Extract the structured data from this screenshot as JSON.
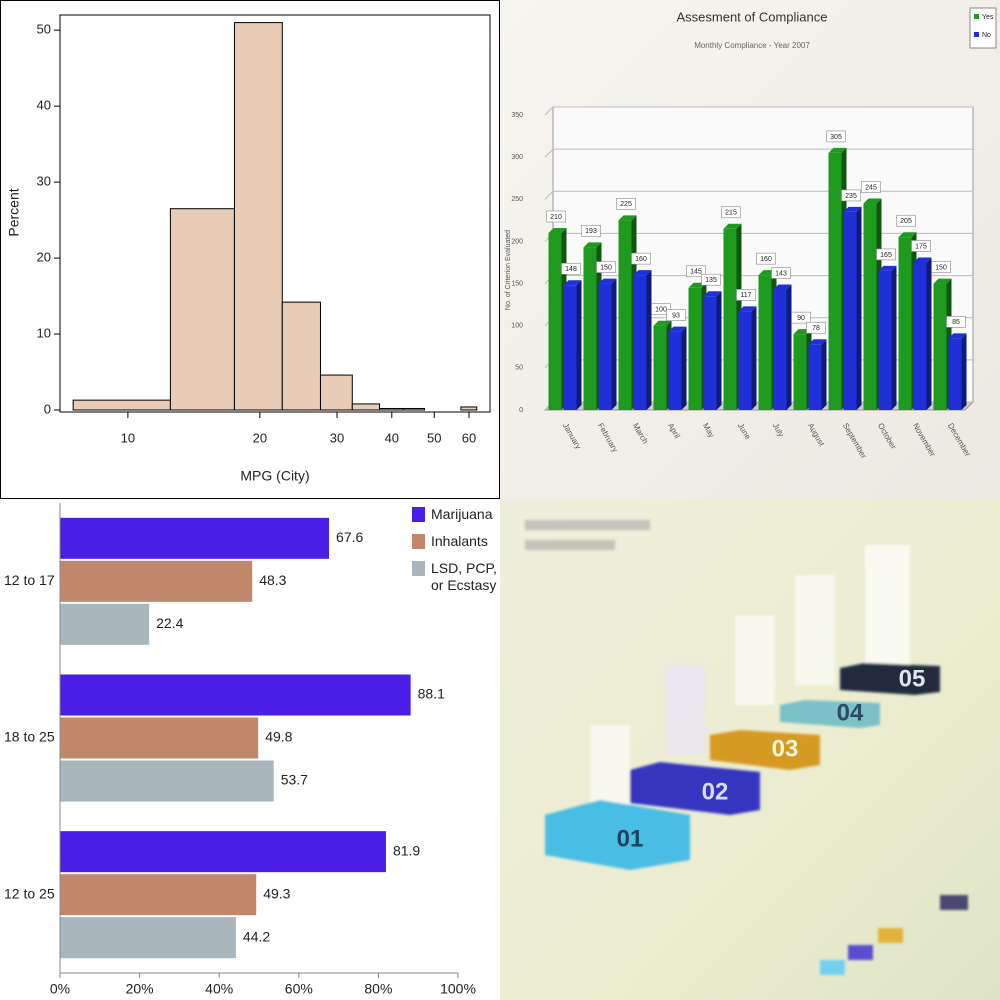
{
  "chart_data": [
    {
      "type": "histogram",
      "xlabel": "MPG (City)",
      "ylabel": "Percent",
      "xscale": "log",
      "color": "#e8ccb5",
      "bins": [
        7.5,
        12.5,
        17.5,
        22.5,
        27.5,
        32.5,
        37.5,
        42.5,
        47.5,
        52.5,
        57.5,
        62.5
      ],
      "values": [
        1.3,
        26.5,
        51,
        14.2,
        4.6,
        0.8,
        0.2,
        0.2,
        0,
        0,
        0.4
      ],
      "xlim": [
        7,
        67
      ],
      "xticks": [
        10,
        20,
        30,
        40,
        50,
        60
      ],
      "ylim": [
        0,
        52
      ],
      "yticks": [
        0,
        10,
        20,
        30,
        40,
        50
      ]
    },
    {
      "type": "bar",
      "title": "Assesment of Compliance",
      "subtitle": "Monthly Compliance - Year 2007",
      "ylabel": "No. of Criterion Evaluated",
      "categories": [
        "January",
        "February",
        "March",
        "April",
        "May",
        "June",
        "July",
        "August",
        "September",
        "October",
        "November",
        "December"
      ],
      "series": [
        {
          "name": "Yes",
          "color": "#1e9a1e",
          "values": [
            210,
            193,
            225,
            100,
            145,
            215,
            160,
            90,
            305,
            245,
            205,
            150
          ]
        },
        {
          "name": "No",
          "color": "#2030d8",
          "values": [
            148,
            150,
            160,
            93,
            135,
            117,
            143,
            78,
            235,
            165,
            175,
            85
          ]
        }
      ],
      "ylim": [
        0,
        350
      ],
      "yticks": [
        0,
        50,
        100,
        150,
        200,
        250,
        300,
        350
      ],
      "grid": true,
      "legend": "top-right"
    },
    {
      "type": "bar",
      "orientation": "horizontal",
      "categories": [
        "12 to 17",
        "18 to 25",
        "12 to 25"
      ],
      "series": [
        {
          "name": "Marijuana",
          "color": "#4b1ee6",
          "values": [
            67.6,
            88.1,
            81.9
          ]
        },
        {
          "name": "Inhalants",
          "color": "#c0876b",
          "values": [
            48.3,
            49.8,
            49.3
          ]
        },
        {
          "name": "LSD, PCP, or Ecstasy",
          "color": "#a9b6bd",
          "values": [
            22.4,
            53.7,
            44.2
          ]
        }
      ],
      "xlim": [
        0,
        100
      ],
      "xticks": [
        {
          "value": 0,
          "label": "0%"
        },
        {
          "value": 20,
          "label": "20%"
        },
        {
          "value": 40,
          "label": "40%"
        },
        {
          "value": 60,
          "label": "60%"
        },
        {
          "value": 80,
          "label": "80%"
        },
        {
          "value": 100,
          "label": "100%"
        }
      ],
      "legend": "top-right"
    }
  ],
  "infographic": {
    "steps": [
      {
        "label": "01"
      },
      {
        "label": "02"
      },
      {
        "label": "03"
      },
      {
        "label": "04"
      },
      {
        "label": "05"
      }
    ]
  }
}
